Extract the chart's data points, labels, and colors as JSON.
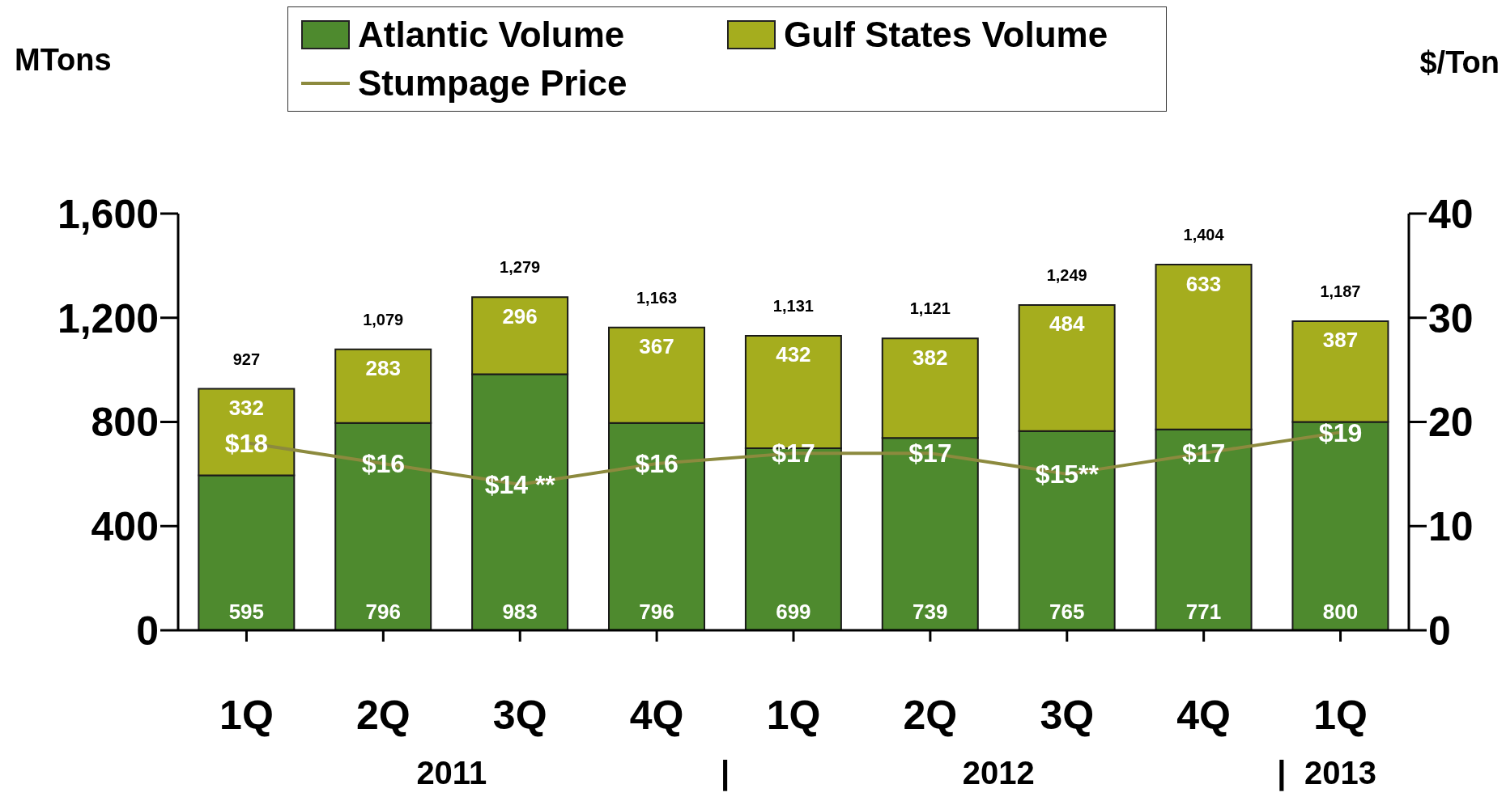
{
  "chart_data": {
    "type": "bar",
    "stacked": true,
    "categories": [
      "1Q",
      "2Q",
      "3Q",
      "4Q",
      "1Q",
      "2Q",
      "3Q",
      "4Q",
      "1Q"
    ],
    "series": [
      {
        "name": "Atlantic Volume",
        "color": "#4e8a2e",
        "values": [
          595,
          796,
          983,
          796,
          699,
          739,
          765,
          771,
          800
        ]
      },
      {
        "name": "Gulf States Volume",
        "color": "#a5ad1e",
        "values": [
          332,
          283,
          296,
          367,
          432,
          382,
          484,
          633,
          387
        ]
      },
      {
        "name": "Stumpage Price",
        "type": "line",
        "axis": "y2",
        "color": "#8c8a3e",
        "values": [
          18,
          16,
          14,
          16,
          17,
          17,
          15,
          17,
          19
        ],
        "value_labels": [
          "$18",
          "$16",
          "$14 **",
          "$16",
          "$17",
          "$17",
          "$15**",
          "$17",
          "$19"
        ]
      }
    ],
    "totals": [
      "927",
      "1,079",
      "1,279",
      "1,163",
      "1,131",
      "1,121",
      "1,249",
      "1,404",
      "1,187"
    ],
    "data_labels": true,
    "ylabel": "MTons",
    "y2label": "$/Ton",
    "ylim": [
      0,
      1600
    ],
    "yticks": [
      0,
      {
        "value": 400,
        "label": "400"
      },
      {
        "value": 800,
        "label": "800"
      },
      {
        "value": 1200,
        "label": "1,200"
      },
      {
        "value": 1600,
        "label": "1,600"
      }
    ],
    "y2lim": [
      0,
      40
    ],
    "y2ticks": [
      0,
      10,
      20,
      30,
      40
    ],
    "annotations": [
      "2011",
      "|",
      "2012",
      "|",
      "2013"
    ],
    "legend": "top",
    "grid": false,
    "marker": "none"
  }
}
